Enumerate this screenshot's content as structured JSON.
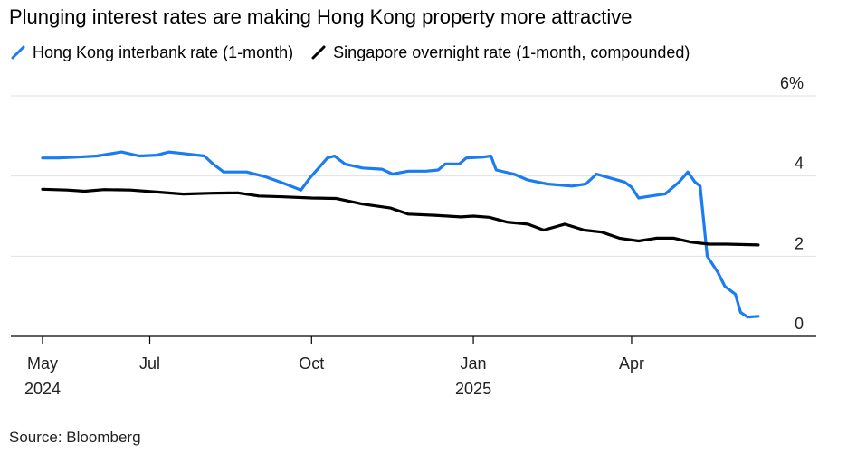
{
  "title": "Plunging interest rates are making Hong Kong property more attractive",
  "source": "Source: Bloomberg",
  "chart_data": {
    "type": "line",
    "title": "Plunging interest rates are making Hong Kong property more attractive",
    "ylim": [
      0,
      6
    ],
    "y_ticks": [
      {
        "value": 0,
        "label": "0"
      },
      {
        "value": 2,
        "label": "2"
      },
      {
        "value": 4,
        "label": "4"
      },
      {
        "value": 6,
        "label": "6%"
      }
    ],
    "x_ticks": [
      {
        "date": "2024-05-01",
        "label": "May",
        "sublabel": "2024"
      },
      {
        "date": "2024-07-01",
        "label": "Jul",
        "sublabel": ""
      },
      {
        "date": "2024-10-01",
        "label": "Oct",
        "sublabel": ""
      },
      {
        "date": "2025-01-01",
        "label": "Jan",
        "sublabel": "2025"
      },
      {
        "date": "2025-04-01",
        "label": "Apr",
        "sublabel": ""
      }
    ],
    "grid": true,
    "legend": "top-left",
    "series": [
      {
        "name": "Hong Kong interbank rate (1-month)",
        "color": "#1a7cf2",
        "points": [
          [
            "2024-05-01",
            4.45
          ],
          [
            "2024-05-10",
            4.45
          ],
          [
            "2024-05-20",
            4.47
          ],
          [
            "2024-06-01",
            4.5
          ],
          [
            "2024-06-15",
            4.6
          ],
          [
            "2024-06-25",
            4.5
          ],
          [
            "2024-07-05",
            4.52
          ],
          [
            "2024-07-12",
            4.6
          ],
          [
            "2024-07-20",
            4.56
          ],
          [
            "2024-08-01",
            4.5
          ],
          [
            "2024-08-06",
            4.3
          ],
          [
            "2024-08-12",
            4.1
          ],
          [
            "2024-08-25",
            4.1
          ],
          [
            "2024-09-05",
            3.98
          ],
          [
            "2024-09-15",
            3.82
          ],
          [
            "2024-09-25",
            3.65
          ],
          [
            "2024-09-30",
            3.95
          ],
          [
            "2024-10-05",
            4.2
          ],
          [
            "2024-10-10",
            4.45
          ],
          [
            "2024-10-14",
            4.5
          ],
          [
            "2024-10-20",
            4.3
          ],
          [
            "2024-10-30",
            4.2
          ],
          [
            "2024-11-10",
            4.17
          ],
          [
            "2024-11-16",
            4.05
          ],
          [
            "2024-11-25",
            4.12
          ],
          [
            "2024-12-05",
            4.12
          ],
          [
            "2024-12-12",
            4.15
          ],
          [
            "2024-12-16",
            4.3
          ],
          [
            "2024-12-24",
            4.3
          ],
          [
            "2024-12-28",
            4.45
          ],
          [
            "2025-01-06",
            4.47
          ],
          [
            "2025-01-11",
            4.5
          ],
          [
            "2025-01-14",
            4.15
          ],
          [
            "2025-01-24",
            4.05
          ],
          [
            "2025-02-01",
            3.9
          ],
          [
            "2025-02-12",
            3.8
          ],
          [
            "2025-02-26",
            3.75
          ],
          [
            "2025-03-06",
            3.8
          ],
          [
            "2025-03-12",
            4.05
          ],
          [
            "2025-03-20",
            3.95
          ],
          [
            "2025-03-28",
            3.85
          ],
          [
            "2025-04-01",
            3.72
          ],
          [
            "2025-04-05",
            3.45
          ],
          [
            "2025-04-12",
            3.5
          ],
          [
            "2025-04-20",
            3.55
          ],
          [
            "2025-04-28",
            3.85
          ],
          [
            "2025-05-03",
            4.1
          ],
          [
            "2025-05-07",
            3.85
          ],
          [
            "2025-05-10",
            3.75
          ],
          [
            "2025-05-14",
            2.0
          ],
          [
            "2025-05-20",
            1.6
          ],
          [
            "2025-05-24",
            1.25
          ],
          [
            "2025-05-30",
            1.05
          ],
          [
            "2025-06-02",
            0.6
          ],
          [
            "2025-06-06",
            0.48
          ],
          [
            "2025-06-12",
            0.5
          ]
        ]
      },
      {
        "name": "Singapore overnight rate (1-month, compounded)",
        "color": "#000000",
        "points": [
          [
            "2024-05-01",
            3.67
          ],
          [
            "2024-05-15",
            3.65
          ],
          [
            "2024-05-25",
            3.62
          ],
          [
            "2024-06-05",
            3.66
          ],
          [
            "2024-06-20",
            3.65
          ],
          [
            "2024-07-05",
            3.6
          ],
          [
            "2024-07-20",
            3.55
          ],
          [
            "2024-08-05",
            3.57
          ],
          [
            "2024-08-20",
            3.58
          ],
          [
            "2024-09-01",
            3.5
          ],
          [
            "2024-09-15",
            3.48
          ],
          [
            "2024-10-01",
            3.45
          ],
          [
            "2024-10-15",
            3.44
          ],
          [
            "2024-10-30",
            3.3
          ],
          [
            "2024-11-15",
            3.2
          ],
          [
            "2024-11-25",
            3.05
          ],
          [
            "2024-12-10",
            3.02
          ],
          [
            "2024-12-25",
            2.98
          ],
          [
            "2025-01-01",
            3.0
          ],
          [
            "2025-01-10",
            2.97
          ],
          [
            "2025-01-20",
            2.85
          ],
          [
            "2025-02-01",
            2.8
          ],
          [
            "2025-02-10",
            2.65
          ],
          [
            "2025-02-22",
            2.8
          ],
          [
            "2025-03-05",
            2.65
          ],
          [
            "2025-03-15",
            2.6
          ],
          [
            "2025-03-25",
            2.45
          ],
          [
            "2025-04-05",
            2.38
          ],
          [
            "2025-04-15",
            2.45
          ],
          [
            "2025-04-25",
            2.45
          ],
          [
            "2025-05-05",
            2.35
          ],
          [
            "2025-05-15",
            2.3
          ],
          [
            "2025-05-25",
            2.3
          ],
          [
            "2025-06-12",
            2.28
          ]
        ]
      }
    ]
  }
}
